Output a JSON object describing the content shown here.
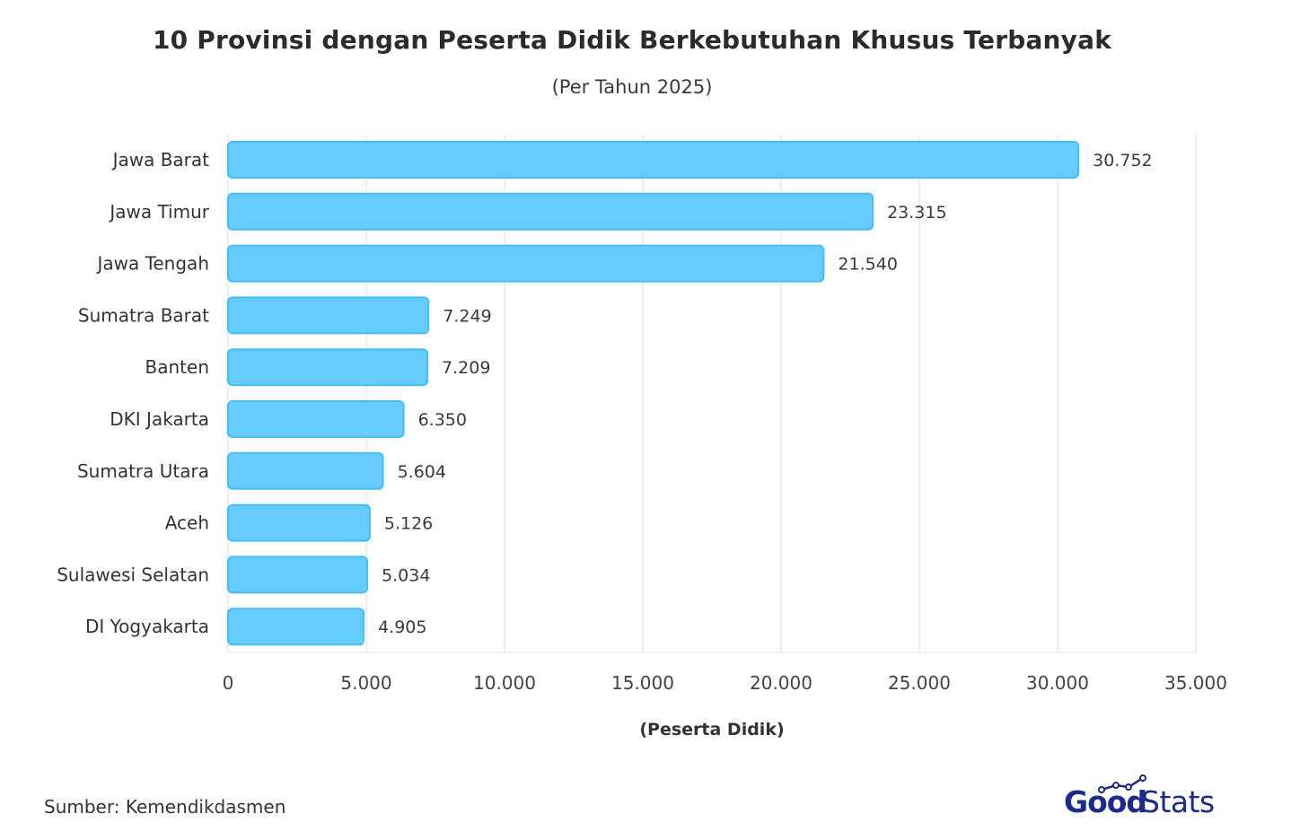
{
  "chart_data": {
    "type": "bar",
    "orientation": "horizontal",
    "title": "10 Provinsi dengan Peserta Didik Berkebutuhan Khusus Terbanyak",
    "subtitle": "(Per Tahun 2025)",
    "xlabel": "(Peserta Didik)",
    "ylabel": "",
    "categories": [
      "Jawa Barat",
      "Jawa Timur",
      "Jawa Tengah",
      "Sumatra Barat",
      "Banten",
      "DKI Jakarta",
      "Sumatra Utara",
      "Aceh",
      "Sulawesi Selatan",
      "DI Yogyakarta"
    ],
    "values": [
      30752,
      23315,
      21540,
      7249,
      7209,
      6350,
      5604,
      5126,
      5034,
      4905
    ],
    "value_labels": [
      "30.752",
      "23.315",
      "21.540",
      "7.249",
      "7.209",
      "6.350",
      "5.604",
      "5.126",
      "5.034",
      "4.905"
    ],
    "xlim": [
      0,
      35000
    ],
    "x_ticks": [
      0,
      5000,
      10000,
      15000,
      20000,
      25000,
      30000,
      35000
    ],
    "x_tick_labels": [
      "0",
      "5.000",
      "10.000",
      "15.000",
      "20.000",
      "25.000",
      "30.000",
      "35.000"
    ],
    "grid": true,
    "legend": "none",
    "bar_color": "#66CCFF",
    "bar_border_color": "#45BDF5"
  },
  "footer": {
    "source": "Sumber: Kemendikdasmen"
  },
  "logo": {
    "text_bold": "Good",
    "text_light": "Stats",
    "color": "#1b2a8c"
  }
}
